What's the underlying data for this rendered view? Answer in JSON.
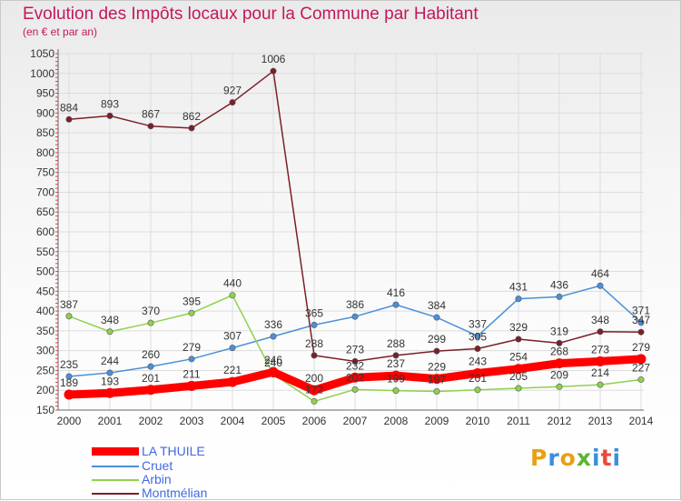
{
  "title": "Evolution des Impôts locaux pour la Commune par Habitant",
  "subtitle": "(en € et par an)",
  "logo_text": "Proxiti",
  "logo_colors": [
    "#e8a013",
    "#3b8ede",
    "#e8a013",
    "#5cb531",
    "#3b8ede",
    "#e74c3c",
    "#3b8ede"
  ],
  "chart_data": {
    "type": "line",
    "x": [
      2000,
      2001,
      2002,
      2003,
      2004,
      2005,
      2006,
      2007,
      2008,
      2009,
      2010,
      2011,
      2012,
      2013,
      2014
    ],
    "ylim": [
      150,
      1050
    ],
    "yticks": [
      150,
      200,
      250,
      300,
      350,
      400,
      450,
      500,
      550,
      600,
      650,
      700,
      750,
      800,
      850,
      900,
      950,
      1000,
      1050
    ],
    "grid": true,
    "legend_position": "bottom-left",
    "series": [
      {
        "name": "LA THUILE",
        "color": "#ff0000",
        "values": [
          189,
          193,
          201,
          211,
          221,
          246,
          200,
          232,
          237,
          229,
          243,
          254,
          268,
          273,
          279
        ]
      },
      {
        "name": "Cruet",
        "color": "#4a90d9",
        "values": [
          235,
          244,
          260,
          279,
          307,
          336,
          365,
          386,
          416,
          384,
          337,
          431,
          436,
          464,
          371
        ]
      },
      {
        "name": "Arbin",
        "color": "#8fd14f",
        "values": [
          387,
          348,
          370,
          395,
          440,
          240,
          172,
          202,
          199,
          197,
          201,
          205,
          209,
          214,
          227
        ]
      },
      {
        "name": "Montmélian",
        "color": "#7b1f28",
        "values": [
          884,
          893,
          867,
          862,
          927,
          1006,
          288,
          273,
          288,
          299,
          305,
          329,
          319,
          348,
          347
        ]
      }
    ]
  }
}
